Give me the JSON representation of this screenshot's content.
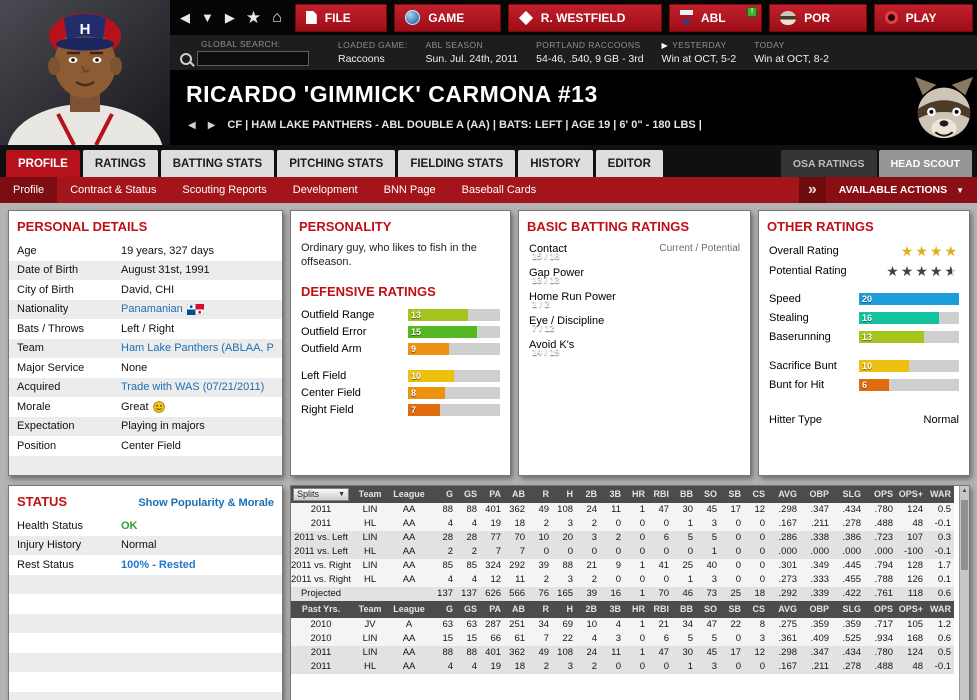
{
  "accent": {
    "red": "#b5121c",
    "dark_red": "#7c0d12",
    "panel_title": "#c01016",
    "link": "#1b6fb5"
  },
  "rating_colors": [
    [
      18,
      "#1e9cd8"
    ],
    [
      16,
      "#14c39e"
    ],
    [
      14,
      "#53b821"
    ],
    [
      12,
      "#a6c51c"
    ],
    [
      10,
      "#eec111"
    ],
    [
      8,
      "#ee9111"
    ],
    [
      6,
      "#e06c0e"
    ],
    [
      4,
      "#c43c10"
    ],
    [
      0,
      "#8e1616"
    ]
  ],
  "topnav": {
    "nav_icons": [
      "back",
      "down",
      "forward",
      "favorite",
      "home"
    ],
    "menus": [
      {
        "label": "FILE",
        "icon": "icon-file"
      },
      {
        "label": "GAME",
        "icon": "icon-globe"
      },
      {
        "label": "R. WESTFIELD",
        "icon": "icon-manager"
      },
      {
        "label": "ABL",
        "icon": "icon-league",
        "badge": "!"
      },
      {
        "label": "POR",
        "icon": "icon-team"
      },
      {
        "label": "PLAY",
        "icon": "icon-play"
      }
    ]
  },
  "statusbar": {
    "search_label": "GLOBAL SEARCH:",
    "blocks": [
      {
        "label": "LOADED GAME:",
        "value": "Raccoons"
      },
      {
        "label": "ABL SEASON",
        "value": "Sun. Jul. 24th, 2011"
      },
      {
        "label": "PORTLAND RACCOONS",
        "value": "54-46, .540, 9 GB - 3rd"
      },
      {
        "label": "YESTERDAY",
        "value": "Win at OCT, 5-2",
        "marker": true
      },
      {
        "label": "TODAY",
        "value": "Win at OCT, 8-2"
      }
    ]
  },
  "player": {
    "name": "RICARDO 'GIMMICK' CARMONA  #13",
    "info": "CF | HAM LAKE PANTHERS - ABL DOUBLE A (AA) | BATS: LEFT | AGE 19 | 6' 0\" - 180 LBS |"
  },
  "tabs": {
    "items": [
      "PROFILE",
      "RATINGS",
      "BATTING STATS",
      "PITCHING STATS",
      "FIELDING STATS",
      "HISTORY",
      "EDITOR"
    ],
    "active": 0,
    "right": [
      "OSA RATINGS",
      "HEAD SCOUT"
    ]
  },
  "subtabs": {
    "items": [
      "Profile",
      "Contract & Status",
      "Scouting Reports",
      "Development",
      "BNN Page",
      "Baseball Cards"
    ],
    "active": 0,
    "actions_label": "AVAILABLE ACTIONS"
  },
  "personal_details": {
    "title": "PERSONAL DETAILS",
    "rows": [
      {
        "label": "Age",
        "value": "19 years, 327 days"
      },
      {
        "label": "Date of Birth",
        "value": "August 31st, 1991"
      },
      {
        "label": "City of Birth",
        "value": "David, CHI"
      },
      {
        "label": "Nationality",
        "value": "Panamanian",
        "link": true,
        "icon": "panama-flag"
      },
      {
        "label": "Bats / Throws",
        "value": "Left / Right"
      },
      {
        "label": "Team",
        "value": "Ham Lake Panthers (ABLAA, POR",
        "link": true
      },
      {
        "label": "Major Service",
        "value": "None"
      },
      {
        "label": "Acquired",
        "value": "Trade with WAS (07/21/2011)",
        "link": true
      },
      {
        "label": "Morale",
        "value": "Great",
        "icon": "smiley-great"
      },
      {
        "label": "Expectation",
        "value": "Playing in majors"
      },
      {
        "label": "Position",
        "value": "Center Field"
      }
    ]
  },
  "personality": {
    "title": "PERSONALITY",
    "text": "Ordinary guy, who likes to fish in the offseason.",
    "defense_title": "DEFENSIVE RATINGS",
    "defense": [
      {
        "label": "Outfield Range",
        "value": 13
      },
      {
        "label": "Outfield Error",
        "value": 15
      },
      {
        "label": "Outfield Arm",
        "value": 9
      },
      {
        "label": "Left Field",
        "value": 10,
        "group": true
      },
      {
        "label": "Center Field",
        "value": 8
      },
      {
        "label": "Right Field",
        "value": 7
      }
    ]
  },
  "batting": {
    "title": "BASIC BATTING RATINGS",
    "scale_label": "Current / Potential",
    "items": [
      {
        "label": "Contact",
        "current": 15,
        "potential": 18
      },
      {
        "label": "Gap Power",
        "current": 13,
        "potential": 13
      },
      {
        "label": "Home Run Power",
        "current": 1,
        "potential": 2
      },
      {
        "label": "Eye / Discipline",
        "current": 7,
        "potential": 12
      },
      {
        "label": "Avoid K's",
        "current": 14,
        "potential": 19
      }
    ]
  },
  "other": {
    "title": "OTHER RATINGS",
    "overall_label": "Overall Rating",
    "overall_stars": 4,
    "potential_label": "Potential Rating",
    "potential_stars": 4.5,
    "star_gold": "#e2ae12",
    "star_dark": "#41414b",
    "bars": [
      {
        "label": "Speed",
        "value": 20
      },
      {
        "label": "Stealing",
        "value": 16
      },
      {
        "label": "Baserunning",
        "value": 13
      },
      {
        "label": "Sacrifice Bunt",
        "value": 10,
        "group": true
      },
      {
        "label": "Bunt for Hit",
        "value": 6
      }
    ],
    "hitter_type_label": "Hitter Type",
    "hitter_type": "Normal"
  },
  "status_panel": {
    "title": "STATUS",
    "link": "Show Popularity & Morale",
    "rows": [
      {
        "label": "Health Status",
        "value": "OK",
        "color": "#2da32d",
        "bold": true
      },
      {
        "label": "Injury History",
        "value": "Normal"
      },
      {
        "label": "Rest Status",
        "value": "100% - Rested",
        "color": "#2277cc",
        "bold": true
      }
    ],
    "empty_rows": 8
  },
  "stats": {
    "columns": [
      "Team",
      "League",
      "G",
      "GS",
      "PA",
      "AB",
      "R",
      "H",
      "2B",
      "3B",
      "HR",
      "RBI",
      "BB",
      "SO",
      "SB",
      "CS",
      "AVG",
      "OBP",
      "SLG",
      "OPS",
      "OPS+",
      "WAR"
    ],
    "splits_label": "Splits",
    "splits_rows": [
      {
        "label": "2011",
        "cells": [
          "LIN",
          "AA",
          "88",
          "88",
          "401",
          "362",
          "49",
          "108",
          "24",
          "11",
          "1",
          "47",
          "30",
          "45",
          "17",
          "12",
          ".298",
          ".347",
          ".434",
          ".780",
          "124",
          "0.5"
        ]
      },
      {
        "label": "2011",
        "cells": [
          "HL",
          "AA",
          "4",
          "4",
          "19",
          "18",
          "2",
          "3",
          "2",
          "0",
          "0",
          "0",
          "1",
          "3",
          "0",
          "0",
          ".167",
          ".211",
          ".278",
          ".488",
          "48",
          "-0.1"
        ]
      },
      {
        "label": "2011 vs. Left",
        "cells": [
          "LIN",
          "AA",
          "28",
          "28",
          "77",
          "70",
          "10",
          "20",
          "3",
          "2",
          "0",
          "6",
          "5",
          "5",
          "0",
          "0",
          ".286",
          ".338",
          ".386",
          ".723",
          "107",
          "0.3"
        ]
      },
      {
        "label": "2011 vs. Left",
        "cells": [
          "HL",
          "AA",
          "2",
          "2",
          "7",
          "7",
          "0",
          "0",
          "0",
          "0",
          "0",
          "0",
          "0",
          "1",
          "0",
          "0",
          ".000",
          ".000",
          ".000",
          ".000",
          "-100",
          "-0.1"
        ]
      },
      {
        "label": "2011 vs. Right",
        "cells": [
          "LIN",
          "AA",
          "85",
          "85",
          "324",
          "292",
          "39",
          "88",
          "21",
          "9",
          "1",
          "41",
          "25",
          "40",
          "0",
          "0",
          ".301",
          ".349",
          ".445",
          ".794",
          "128",
          "1.7"
        ]
      },
      {
        "label": "2011 vs. Right",
        "cells": [
          "HL",
          "AA",
          "4",
          "4",
          "12",
          "11",
          "2",
          "3",
          "2",
          "0",
          "0",
          "0",
          "1",
          "3",
          "0",
          "0",
          ".273",
          ".333",
          ".455",
          ".788",
          "126",
          "0.1"
        ]
      },
      {
        "label": "Projected",
        "cells": [
          "",
          "",
          "137",
          "137",
          "626",
          "566",
          "76",
          "165",
          "39",
          "16",
          "1",
          "70",
          "46",
          "73",
          "25",
          "18",
          ".292",
          ".339",
          ".422",
          ".761",
          "118",
          "0.6"
        ]
      }
    ],
    "past_label": "Past Yrs.",
    "past_rows": [
      {
        "label": "2010",
        "cells": [
          "JV",
          "A",
          "63",
          "63",
          "287",
          "251",
          "34",
          "69",
          "10",
          "4",
          "1",
          "21",
          "34",
          "47",
          "22",
          "8",
          ".275",
          ".359",
          ".359",
          ".717",
          "105",
          "1.2"
        ]
      },
      {
        "label": "2010",
        "cells": [
          "LIN",
          "AA",
          "15",
          "15",
          "66",
          "61",
          "7",
          "22",
          "4",
          "3",
          "0",
          "6",
          "5",
          "5",
          "0",
          "3",
          ".361",
          ".409",
          ".525",
          ".934",
          "168",
          "0.6"
        ]
      },
      {
        "label": "2011",
        "cells": [
          "LIN",
          "AA",
          "88",
          "88",
          "401",
          "362",
          "49",
          "108",
          "24",
          "11",
          "1",
          "47",
          "30",
          "45",
          "17",
          "12",
          ".298",
          ".347",
          ".434",
          ".780",
          "124",
          "0.5"
        ]
      },
      {
        "label": "2011",
        "cells": [
          "HL",
          "AA",
          "4",
          "4",
          "19",
          "18",
          "2",
          "3",
          "2",
          "0",
          "0",
          "0",
          "1",
          "3",
          "0",
          "0",
          ".167",
          ".211",
          ".278",
          ".488",
          "48",
          "-0.1"
        ]
      }
    ]
  }
}
